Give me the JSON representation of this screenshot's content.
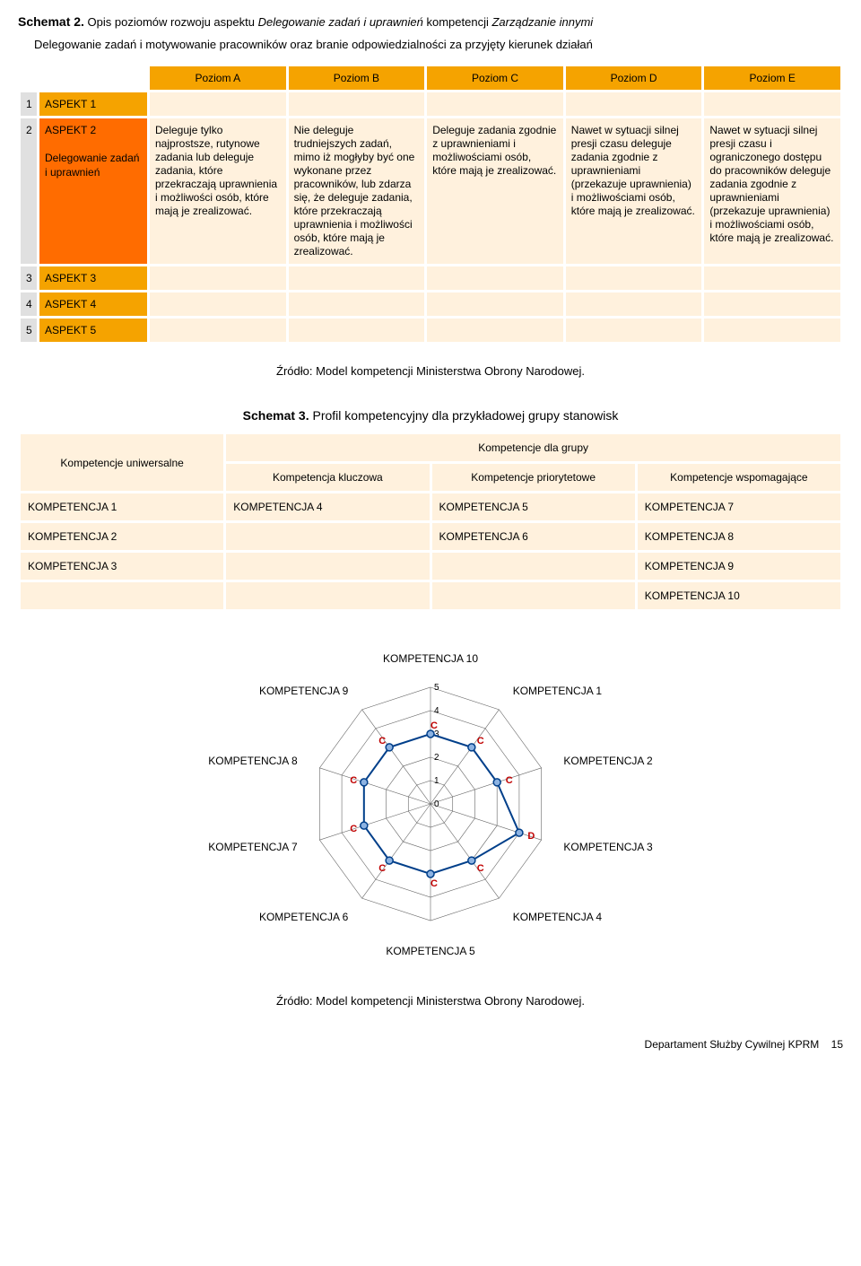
{
  "schema2": {
    "prefix": "Schemat 2.",
    "rest": " Opis poziomów rozwoju aspektu ",
    "italic1": "Delegowanie zadań i uprawnień",
    "mid": " kompetencji ",
    "italic2": "Zarządzanie innymi",
    "intro": "Delegowanie zadań i motywowanie pracowników oraz branie odpowiedzialności za przyjęty kierunek działań",
    "levels": [
      "Poziom A",
      "Poziom B",
      "Poziom C",
      "Poziom D",
      "Poziom E"
    ],
    "aspects": [
      "ASPEKT 1",
      "ASPEKT 2",
      "ASPEKT 3",
      "ASPEKT 4",
      "ASPEKT 5"
    ],
    "row2label": "Delegowanie zadań i uprawnień",
    "cells": {
      "a": "Deleguje tylko najprostsze, rutynowe zadania lub deleguje zadania, które przekraczają uprawnienia i możliwości osób, które mają je zrealizować.",
      "b": "Nie deleguje trudniejszych zadań, mimo iż mogłyby być one wykonane przez pracowników, lub zdarza się, że deleguje zadania, które przekraczają uprawnienia i możliwości osób, które mają je zrealizować.",
      "c": "Deleguje zadania zgodnie z uprawnieniami i możliwościami osób, które mają je zrealizować.",
      "d": "Nawet w sytuacji silnej presji czasu deleguje zadania zgodnie z uprawnieniami (przekazuje uprawnienia) i możliwościami osób, które mają je zrealizować.",
      "e": "Nawet w sytuacji silnej presji czasu i ograniczonego dostępu do pracowników deleguje zadania zgodnie z uprawnieniami (przekazuje uprawnienia) i możliwościami osób, które mają je zrealizować."
    },
    "source": "Źródło: Model kompetencji Ministerstwa Obrony Narodowej."
  },
  "schema3": {
    "prefix": "Schemat 3.",
    "rest": " Profil kompetencyjny dla przykładowej grupy stanowisk",
    "headers": {
      "univ": "Kompetencje uniwersalne",
      "group": "Kompetencje dla grupy",
      "key": "Kompetencja kluczowa",
      "priority": "Kompetencje priorytetowe",
      "support": "Kompetencje wspomagające"
    },
    "rows": {
      "r1": [
        "KOMPETENCJA 1",
        "KOMPETENCJA 4",
        "KOMPETENCJA 5",
        "KOMPETENCJA 7"
      ],
      "r2": [
        "KOMPETENCJA 2",
        "",
        "KOMPETENCJA 6",
        "KOMPETENCJA 8"
      ],
      "r3": [
        "KOMPETENCJA 3",
        "",
        "",
        "KOMPETENCJA 9"
      ],
      "r4": [
        "",
        "",
        "",
        "KOMPETENCJA 10"
      ]
    }
  },
  "chart": {
    "type": "radar",
    "labels": [
      "KOMPETENCJA 10",
      "KOMPETENCJA 1",
      "KOMPETENCJA 2",
      "KOMPETENCJA 3",
      "KOMPETENCJA 4",
      "KOMPETENCJA 5",
      "KOMPETENCJA 6",
      "KOMPETENCJA 7",
      "KOMPETENCJA 8",
      "KOMPETENCJA 9"
    ],
    "values": [
      3,
      3,
      3,
      4,
      3,
      3,
      3,
      3,
      3,
      3
    ],
    "letters": [
      "C",
      "C",
      "C",
      "D",
      "C",
      "C",
      "C",
      "C",
      "C",
      "C"
    ],
    "max": 5,
    "ticks": [
      "0",
      "1",
      "2",
      "3",
      "4",
      "5"
    ],
    "grid_color": "#666666",
    "line_color": "#003f8a",
    "marker_color": "#003f8a",
    "marker_fill": "#8db3e2",
    "letter_color": "#c00000",
    "background_color": "#ffffff",
    "label_fontsize": 12,
    "tick_fontsize": 10
  },
  "source2": "Źródło: Model kompetencji Ministerstwa Obrony Narodowej.",
  "footer": {
    "dept": "Departament Służby Cywilnej KPRM",
    "page": "15"
  }
}
